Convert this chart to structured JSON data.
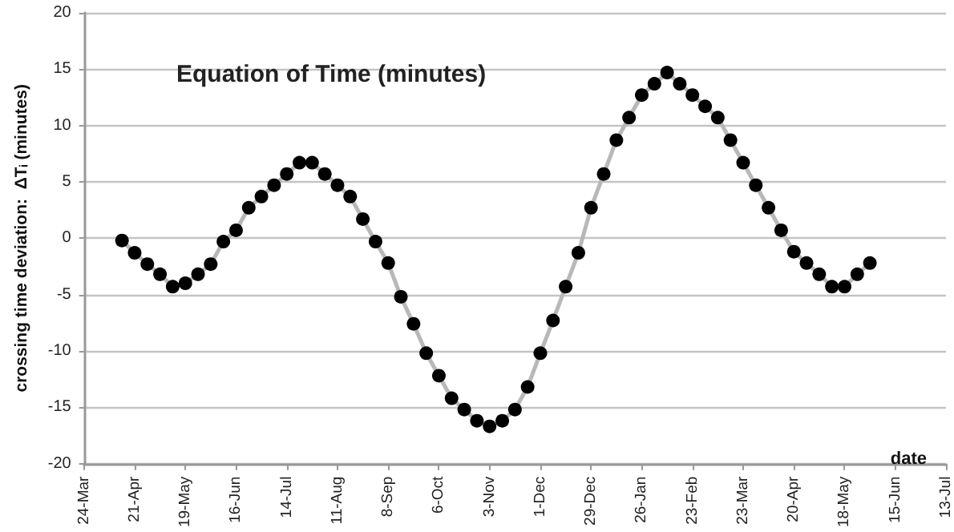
{
  "chart_data": {
    "type": "line",
    "title": "Equation of Time (minutes)",
    "xlabel": "date",
    "ylabel": "crossing time deviation:  ΔTᵢ (minutes)",
    "categories": [
      "24-Mar",
      null,
      null,
      null,
      "21-Apr",
      null,
      null,
      null,
      "19-May",
      null,
      null,
      null,
      "16-Jun",
      null,
      null,
      null,
      "14-Jul",
      null,
      null,
      null,
      "11-Aug",
      null,
      null,
      null,
      "8-Sep",
      null,
      null,
      null,
      "6-Oct",
      null,
      null,
      null,
      "3-Nov",
      null,
      null,
      null,
      "1-Dec",
      null,
      null,
      null,
      "29-Dec",
      null,
      null,
      null,
      "26-Jan",
      null,
      null,
      null,
      "23-Feb",
      null,
      null,
      null,
      "23-Mar",
      null,
      null,
      null,
      "20-Apr",
      null,
      null,
      null,
      "18-May",
      null,
      null,
      null,
      "15-Jun",
      null,
      null,
      null,
      "13-Jul"
    ],
    "series": [
      {
        "color": "#000000",
        "values": [
          null,
          null,
          null,
          -0.2,
          -1.3,
          -2.3,
          -3.2,
          -4.3,
          -4.0,
          -3.2,
          -2.3,
          -0.3,
          0.7,
          2.7,
          3.7,
          4.7,
          5.7,
          6.7,
          6.7,
          5.7,
          4.7,
          3.7,
          1.7,
          -0.3,
          -2.2,
          -5.2,
          -7.6,
          -10.2,
          -12.2,
          -14.2,
          -15.2,
          -16.2,
          -16.7,
          -16.2,
          -15.2,
          -13.2,
          -10.2,
          -7.3,
          -4.3,
          -1.3,
          2.7,
          5.7,
          8.7,
          10.7,
          12.7,
          13.7,
          14.7,
          13.7,
          12.7,
          11.7,
          10.7,
          8.7,
          6.7,
          4.7,
          2.7,
          0.7,
          -1.2,
          -2.2,
          -3.2,
          -4.3,
          -4.3,
          -3.2,
          -2.2,
          null,
          null,
          null,
          null,
          null,
          null
        ]
      }
    ],
    "ylim": [
      -20,
      20
    ],
    "yticks": [
      -20,
      -15,
      -10,
      -5,
      0,
      5,
      10,
      15,
      20
    ],
    "grid": "y",
    "marker": "circle",
    "line_style": "solid"
  }
}
